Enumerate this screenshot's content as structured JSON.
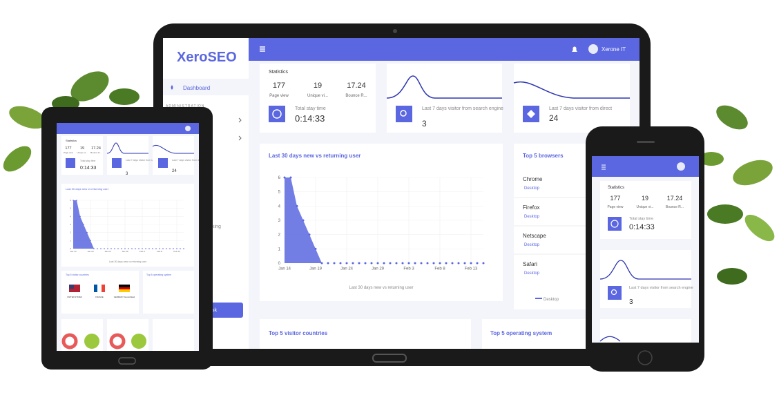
{
  "brand": "XeroSEO",
  "user": "Xerone IT",
  "sidebar": {
    "dashboard": "Dashboard",
    "section": "ADMINISTRATION",
    "partial": [
      "king",
      "sk"
    ]
  },
  "stats": {
    "title": "Statistics",
    "items": [
      {
        "value": 177,
        "label": "Page view"
      },
      {
        "value": 19,
        "label": "Unique vi..."
      },
      {
        "value": 17.24,
        "label": "Bounce R..."
      }
    ],
    "stay_label": "Total stay time",
    "stay_value": "0:14:33"
  },
  "search": {
    "label": "Last 7 days visitor from search engine",
    "value": 3
  },
  "direct": {
    "label": "Last 7 days visitor from direct",
    "value": 24
  },
  "chart_data": {
    "type": "area",
    "title": "Last 30 days new vs returning user",
    "x": [
      "Jan 14",
      null,
      null,
      null,
      null,
      "Jan 19",
      null,
      null,
      null,
      null,
      "Jan 24",
      null,
      null,
      null,
      null,
      "Jan 29",
      null,
      null,
      null,
      null,
      "Feb 3",
      null,
      null,
      null,
      null,
      "Feb 8",
      null,
      null,
      null,
      null,
      "Feb 13",
      null,
      null
    ],
    "series": [
      {
        "name": "Last 30 days new vs returning user",
        "color": "#5b67e0",
        "values": [
          6,
          6,
          4,
          3,
          2,
          1,
          0,
          0,
          0,
          0,
          0,
          0,
          0,
          0,
          0,
          0,
          0,
          0,
          0,
          0,
          0,
          0,
          0,
          0,
          0,
          0,
          0,
          0,
          0,
          0,
          0,
          0,
          0
        ]
      }
    ],
    "ylim": [
      0,
      6
    ],
    "yticks": [
      0,
      1,
      2,
      3,
      4,
      5,
      6
    ],
    "grid": true
  },
  "browsers": {
    "title": "Top 5 browsers",
    "items": [
      {
        "name": "Chrome",
        "device": "Desktop"
      },
      {
        "name": "Firefox",
        "device": "Desktop"
      },
      {
        "name": "Netscape",
        "device": "Desktop"
      },
      {
        "name": "Safari",
        "device": "Desktop"
      }
    ],
    "legend": "Desktop"
  },
  "countries": {
    "title": "Top 5 visitor countries",
    "items": [
      "UNITED STATES",
      "FRANCE",
      "GERMANY Deutschland"
    ]
  },
  "os": {
    "title": "Top 5 operating system"
  }
}
